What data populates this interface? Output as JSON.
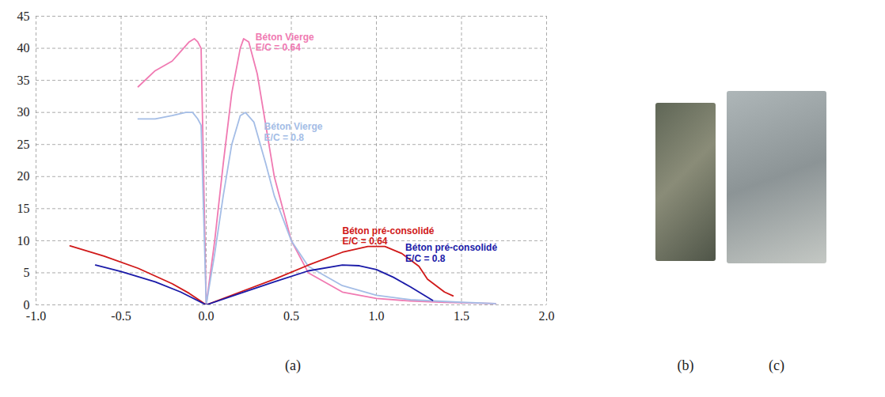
{
  "chart_data": {
    "type": "line",
    "grid": true,
    "xlim": [
      -1.0,
      2.0
    ],
    "xticks": [
      {
        "value": -1.0,
        "label": "-1.0"
      },
      {
        "value": -0.5,
        "label": "-0.5"
      },
      {
        "value": 0,
        "label": "0.0"
      },
      0.5,
      {
        "value": 1.0,
        "label": "1.0"
      },
      1.5,
      {
        "value": 2.0,
        "label": "2.0"
      }
    ],
    "ylim": [
      0,
      45
    ],
    "yticks": [
      0,
      5,
      10,
      15,
      20,
      25,
      30,
      35,
      40,
      45
    ],
    "series": [
      {
        "name": "Béton Vierge E/C = 0.64",
        "color": "#f07ab2",
        "x": [
          -0.4,
          -0.3,
          -0.2,
          -0.15,
          -0.1,
          -0.07,
          -0.05,
          -0.03,
          0,
          0.05,
          0.1,
          0.15,
          0.2,
          0.22,
          0.25,
          0.3,
          0.35,
          0.4,
          0.5,
          0.6,
          0.8,
          1.0,
          1.2,
          1.4,
          1.7
        ],
        "values": [
          34,
          36.5,
          38,
          39.5,
          41,
          41.5,
          41,
          40,
          0,
          10,
          22,
          33,
          40,
          41.5,
          41,
          36,
          28,
          20,
          10,
          5,
          2,
          1,
          0.6,
          0.4,
          0.2
        ]
      },
      {
        "name": "Béton Vierge E/C = 0.8",
        "color": "#a4bde6",
        "x": [
          -0.4,
          -0.3,
          -0.2,
          -0.12,
          -0.08,
          -0.05,
          -0.03,
          0,
          0.05,
          0.1,
          0.15,
          0.2,
          0.23,
          0.28,
          0.35,
          0.4,
          0.5,
          0.6,
          0.8,
          1.0,
          1.2,
          1.5,
          1.7
        ],
        "values": [
          29,
          29,
          29.5,
          30,
          30,
          29,
          28,
          0,
          8,
          17,
          25,
          29.5,
          30,
          28.5,
          22,
          17,
          10,
          6,
          3,
          1.5,
          0.8,
          0.4,
          0.2
        ]
      },
      {
        "name": "Béton pré-consolidé E/C = 0.64",
        "color": "#d01818",
        "x": [
          -0.8,
          -0.6,
          -0.4,
          -0.2,
          -0.1,
          0,
          0.2,
          0.4,
          0.6,
          0.8,
          0.95,
          1.05,
          1.15,
          1.25,
          1.3,
          1.4,
          1.45
        ],
        "values": [
          9.2,
          7.6,
          5.7,
          3.3,
          1.8,
          0,
          2,
          4,
          6.2,
          8.2,
          9.1,
          9.1,
          8,
          6,
          4,
          2,
          1.4
        ]
      },
      {
        "name": "Béton pré-consolidé E/C = 0.8",
        "color": "#1a1aa8",
        "x": [
          -0.65,
          -0.5,
          -0.3,
          -0.15,
          0,
          0.2,
          0.4,
          0.6,
          0.8,
          0.9,
          1.0,
          1.1,
          1.2,
          1.33
        ],
        "values": [
          6.2,
          5.2,
          3.6,
          2,
          0,
          1.8,
          3.6,
          5.3,
          6.2,
          6.1,
          5.5,
          4.3,
          2.8,
          0.7
        ]
      }
    ],
    "annotations": [
      {
        "text": "Béton Vierge E/C = 0.64",
        "x": 0.29,
        "y": 42.5,
        "color": "#f07ab2"
      },
      {
        "text": "Béton Vierge E/C = 0.8",
        "x": 0.34,
        "y": 28.5,
        "color": "#a4bde6"
      },
      {
        "text": "Béton pré-consolidé E/C = 0.64",
        "x": 0.8,
        "y": 12.3,
        "color": "#d01818"
      },
      {
        "text": "Béton pré-consolidé E/C = 0.8",
        "x": 1.17,
        "y": 9.6,
        "color": "#1a1aa8"
      }
    ]
  },
  "panel_labels": [
    "(a)",
    "(b)",
    "(c)"
  ]
}
